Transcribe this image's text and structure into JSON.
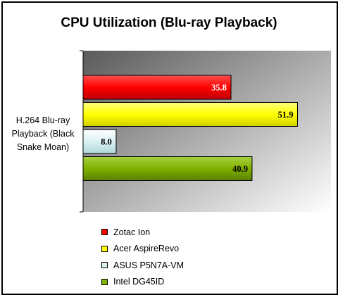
{
  "chart_data": {
    "type": "bar",
    "orientation": "horizontal",
    "title": "CPU Utilization (Blu-ray Playback)",
    "categories": [
      "H.264 Blu-ray Playback (Black Snake Moan)"
    ],
    "series": [
      {
        "name": "Zotac Ion",
        "values": [
          35.8
        ],
        "color": "#ff0000"
      },
      {
        "name": "Acer AspireRevo",
        "values": [
          51.9
        ],
        "color": "#ffff00"
      },
      {
        "name": "ASUS P5N7A-VM",
        "values": [
          8.0
        ],
        "color": "#d9f1f3"
      },
      {
        "name": "Intel DG45ID",
        "values": [
          40.9
        ],
        "color": "#80b000"
      }
    ],
    "value_labels": [
      "35.8",
      "51.9",
      "8.0",
      "40.9"
    ],
    "xlim": [
      0,
      60
    ],
    "grid": false,
    "legend": "bottom",
    "background": "gradient-gray"
  }
}
